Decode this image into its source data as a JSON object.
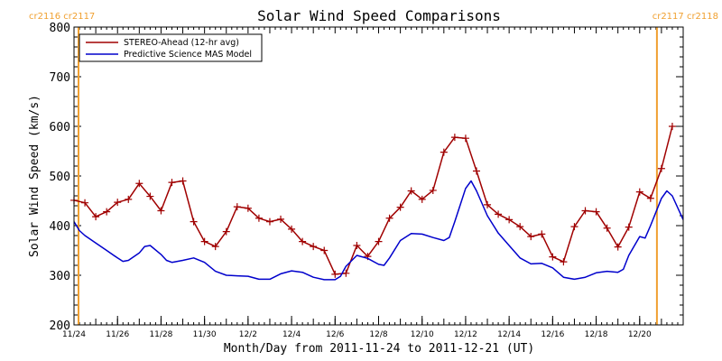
{
  "colors": {
    "stereo": "#a00000",
    "mas": "#0000cc",
    "carrington": "#f0a030",
    "axis": "#000000"
  },
  "chart_data": {
    "type": "line",
    "title": "Solar Wind Speed Comparisons",
    "xlabel": "Month/Day from 2011-11-24 to 2011-12-21 (UT)",
    "ylabel": "Solar Wind Speed (km/s)",
    "xlim": [
      "2011-11-24",
      "2011-12-21"
    ],
    "ylim": [
      200,
      800
    ],
    "yticks": [
      200,
      300,
      400,
      500,
      600,
      700,
      800
    ],
    "xtick_dates": [
      "2011-11-24",
      "2011-11-26",
      "2011-11-28",
      "2011-11-30",
      "2011-12-02",
      "2011-12-04",
      "2011-12-06",
      "2011-12-08",
      "2011-12-10",
      "2011-12-12",
      "2011-12-14",
      "2011-12-16",
      "2011-12-18",
      "2011-12-20"
    ],
    "xtick_labels": [
      "11/24",
      "11/26",
      "11/28",
      "11/30",
      "12/2",
      "12/4",
      "12/6",
      "12/8",
      "12/10",
      "12/12",
      "12/14",
      "12/16",
      "12/18",
      "12/20"
    ],
    "carrington_markers": [
      {
        "date": "2011-11-24",
        "label": "cr2116 cr2117"
      },
      {
        "date": "2011-12-21",
        "label": "cr2117 cr2118"
      }
    ],
    "series": [
      {
        "name": "STEREO-Ahead (12-hr avg)",
        "color": "#a00000",
        "marker": "plus",
        "points": [
          [
            "2011-11-24 00:00",
            451
          ],
          [
            "2011-11-24 12:00",
            446
          ],
          [
            "2011-11-25 00:00",
            418
          ],
          [
            "2011-11-25 12:00",
            428
          ],
          [
            "2011-11-26 00:00",
            447
          ],
          [
            "2011-11-26 12:00",
            453
          ],
          [
            "2011-11-27 00:00",
            485
          ],
          [
            "2011-11-27 12:00",
            459
          ],
          [
            "2011-11-28 00:00",
            430
          ],
          [
            "2011-11-28 12:00",
            487
          ],
          [
            "2011-11-29 00:00",
            490
          ],
          [
            "2011-11-29 12:00",
            408
          ],
          [
            "2011-11-30 00:00",
            368
          ],
          [
            "2011-11-30 12:00",
            358
          ],
          [
            "2011-12-01 00:00",
            388
          ],
          [
            "2011-12-01 12:00",
            438
          ],
          [
            "2011-12-02 00:00",
            435
          ],
          [
            "2011-12-02 12:00",
            415
          ],
          [
            "2011-12-03 00:00",
            408
          ],
          [
            "2011-12-03 12:00",
            413
          ],
          [
            "2011-12-04 00:00",
            393
          ],
          [
            "2011-12-04 12:00",
            368
          ],
          [
            "2011-12-05 00:00",
            358
          ],
          [
            "2011-12-05 12:00",
            350
          ],
          [
            "2011-12-06 00:00",
            302
          ],
          [
            "2011-12-06 12:00",
            304
          ],
          [
            "2011-12-07 00:00",
            360
          ],
          [
            "2011-12-07 12:00",
            338
          ],
          [
            "2011-12-08 00:00",
            368
          ],
          [
            "2011-12-08 12:00",
            415
          ],
          [
            "2011-12-09 00:00",
            437
          ],
          [
            "2011-12-09 12:00",
            470
          ],
          [
            "2011-12-10 00:00",
            453
          ],
          [
            "2011-12-10 12:00",
            471
          ],
          [
            "2011-12-11 00:00",
            548
          ],
          [
            "2011-12-11 12:00",
            578
          ],
          [
            "2011-12-12 00:00",
            576
          ],
          [
            "2011-12-12 12:00",
            510
          ],
          [
            "2011-12-13 00:00",
            442
          ],
          [
            "2011-12-13 12:00",
            423
          ],
          [
            "2011-12-14 00:00",
            412
          ],
          [
            "2011-12-14 12:00",
            398
          ],
          [
            "2011-12-15 00:00",
            378
          ],
          [
            "2011-12-15 12:00",
            383
          ],
          [
            "2011-12-16 00:00",
            337
          ],
          [
            "2011-12-16 12:00",
            327
          ],
          [
            "2011-12-17 00:00",
            398
          ],
          [
            "2011-12-17 12:00",
            430
          ],
          [
            "2011-12-18 00:00",
            428
          ],
          [
            "2011-12-18 12:00",
            395
          ],
          [
            "2011-12-19 00:00",
            357
          ],
          [
            "2011-12-19 12:00",
            397
          ],
          [
            "2011-12-20 00:00",
            468
          ],
          [
            "2011-12-20 12:00",
            455
          ],
          [
            "2011-12-21 00:00",
            515
          ],
          [
            "2011-12-21 12:00",
            600
          ]
        ]
      },
      {
        "name": "Predictive Science MAS Model",
        "color": "#0000cc",
        "marker": "none",
        "points": [
          [
            "2011-11-24 00:00",
            408
          ],
          [
            "2011-11-24 06:00",
            390
          ],
          [
            "2011-11-24 12:00",
            380
          ],
          [
            "2011-11-25 00:00",
            365
          ],
          [
            "2011-11-25 12:00",
            350
          ],
          [
            "2011-11-26 00:00",
            335
          ],
          [
            "2011-11-26 06:00",
            328
          ],
          [
            "2011-11-26 12:00",
            330
          ],
          [
            "2011-11-27 00:00",
            345
          ],
          [
            "2011-11-27 06:00",
            358
          ],
          [
            "2011-11-27 12:00",
            360
          ],
          [
            "2011-11-28 00:00",
            342
          ],
          [
            "2011-11-28 06:00",
            330
          ],
          [
            "2011-11-28 12:00",
            326
          ],
          [
            "2011-11-29 00:00",
            330
          ],
          [
            "2011-11-29 12:00",
            335
          ],
          [
            "2011-11-30 00:00",
            326
          ],
          [
            "2011-11-30 12:00",
            308
          ],
          [
            "2011-12-01 00:00",
            300
          ],
          [
            "2011-12-01 12:00",
            299
          ],
          [
            "2011-12-02 00:00",
            298
          ],
          [
            "2011-12-02 12:00",
            292
          ],
          [
            "2011-12-03 00:00",
            292
          ],
          [
            "2011-12-03 12:00",
            303
          ],
          [
            "2011-12-04 00:00",
            309
          ],
          [
            "2011-12-04 12:00",
            306
          ],
          [
            "2011-12-05 00:00",
            296
          ],
          [
            "2011-12-05 12:00",
            291
          ],
          [
            "2011-12-06 00:00",
            291
          ],
          [
            "2011-12-06 06:00",
            298
          ],
          [
            "2011-12-06 12:00",
            318
          ],
          [
            "2011-12-07 00:00",
            340
          ],
          [
            "2011-12-07 12:00",
            334
          ],
          [
            "2011-12-08 00:00",
            322
          ],
          [
            "2011-12-08 06:00",
            320
          ],
          [
            "2011-12-08 12:00",
            335
          ],
          [
            "2011-12-09 00:00",
            370
          ],
          [
            "2011-12-09 12:00",
            384
          ],
          [
            "2011-12-10 00:00",
            383
          ],
          [
            "2011-12-10 12:00",
            376
          ],
          [
            "2011-12-11 00:00",
            370
          ],
          [
            "2011-12-11 06:00",
            376
          ],
          [
            "2011-12-11 12:00",
            408
          ],
          [
            "2011-12-12 00:00",
            475
          ],
          [
            "2011-12-12 06:00",
            490
          ],
          [
            "2011-12-12 12:00",
            470
          ],
          [
            "2011-12-13 00:00",
            420
          ],
          [
            "2011-12-13 12:00",
            385
          ],
          [
            "2011-12-14 00:00",
            360
          ],
          [
            "2011-12-14 12:00",
            335
          ],
          [
            "2011-12-15 00:00",
            323
          ],
          [
            "2011-12-15 12:00",
            324
          ],
          [
            "2011-12-16 00:00",
            315
          ],
          [
            "2011-12-16 12:00",
            296
          ],
          [
            "2011-12-17 00:00",
            292
          ],
          [
            "2011-12-17 12:00",
            296
          ],
          [
            "2011-12-18 00:00",
            305
          ],
          [
            "2011-12-18 12:00",
            308
          ],
          [
            "2011-12-19 00:00",
            306
          ],
          [
            "2011-12-19 06:00",
            312
          ],
          [
            "2011-12-19 12:00",
            340
          ],
          [
            "2011-12-20 00:00",
            378
          ],
          [
            "2011-12-20 06:00",
            375
          ],
          [
            "2011-12-20 12:00",
            400
          ],
          [
            "2011-12-21 00:00",
            455
          ],
          [
            "2011-12-21 06:00",
            470
          ],
          [
            "2011-12-21 12:00",
            460
          ],
          [
            "2011-12-22 00:00",
            412
          ]
        ]
      }
    ]
  }
}
